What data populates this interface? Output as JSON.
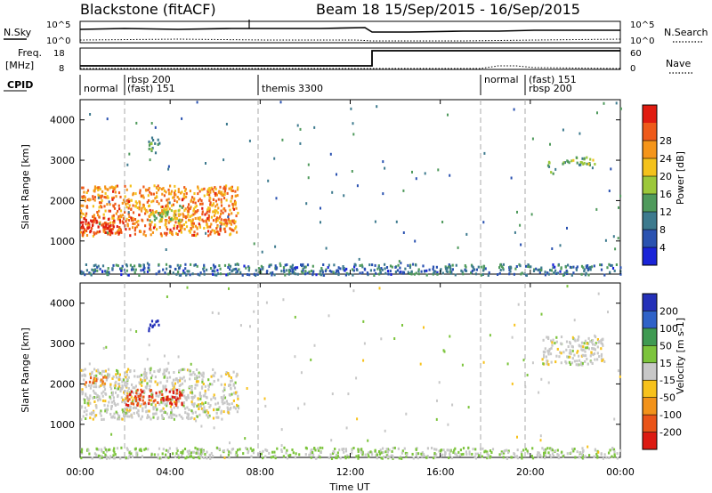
{
  "header": {
    "station": "Blackstone (fitACF)",
    "beam": "Beam 18",
    "date_range": "15/Sep/2015 - 16/Sep/2015"
  },
  "params": {
    "nsky_label": "N.Sky",
    "nsearch_label": "N.Search",
    "nsky_ticks": [
      "10^5",
      "10^0"
    ],
    "nsearch_ticks": [
      "10^5",
      "10^0"
    ],
    "freq_label": "Freq.",
    "freq_unit": "[MHz]",
    "freq_ticks": [
      "18",
      "8"
    ],
    "nave_label": "Nave",
    "nave_ticks": [
      "60",
      "0"
    ],
    "cpid_label": "CPID"
  },
  "cpid_modes": [
    {
      "time_h": 0.0,
      "text": "normal"
    },
    {
      "time_h": 2.0,
      "text": "rbsp 200"
    },
    {
      "time_h": 2.0,
      "text": "(fast) 151"
    },
    {
      "time_h": 8.0,
      "text": "themis 3300"
    },
    {
      "time_h": 18.0,
      "text": "normal"
    },
    {
      "time_h": 20.0,
      "text": "(fast) 151"
    },
    {
      "time_h": 20.0,
      "text": "rbsp 200"
    }
  ],
  "axes": {
    "x_label": "Time UT",
    "x_ticks": [
      "00:00",
      "04:00",
      "08:00",
      "12:00",
      "16:00",
      "20:00",
      "00:00"
    ],
    "y_label": "Slant Range [km]",
    "y_ticks": [
      "1000",
      "2000",
      "3000",
      "4000"
    ]
  },
  "power_bar": {
    "label": "Power [dB]",
    "ticks": [
      "4",
      "8",
      "12",
      "16",
      "20",
      "24",
      "28"
    ],
    "colors": [
      "#1a24d8",
      "#2a52b0",
      "#3d7a8e",
      "#4f9a5c",
      "#9cc83a",
      "#f4c21c",
      "#f5951a",
      "#ee5a1a",
      "#e01b10"
    ]
  },
  "velocity_bar": {
    "label": "Velocity [m s-1]",
    "ticks": [
      "200",
      "100",
      "50",
      "15",
      "-15",
      "-50",
      "-100",
      "-200"
    ],
    "colors": [
      "#2430b8",
      "#2f62c8",
      "#3f9a52",
      "#7cc43c",
      "#c8c8c8",
      "#f7c21c",
      "#f2921a",
      "#ea5418",
      "#dc1a12"
    ]
  },
  "chart_data": [
    {
      "type": "heatmap",
      "title": "Power",
      "xlabel": "Time UT",
      "ylabel": "Slant Range [km]",
      "xlim": [
        0,
        24
      ],
      "ylim": [
        180,
        4500
      ],
      "colorbar": {
        "label": "Power [dB]",
        "range": [
          0,
          32
        ]
      },
      "regions": [
        {
          "t": [
            0.0,
            7.0
          ],
          "range_km": [
            1150,
            2400
          ],
          "value": 24
        },
        {
          "t": [
            0.0,
            2.0
          ],
          "range_km": [
            1200,
            1600
          ],
          "value": 30
        },
        {
          "t": [
            3.0,
            4.5
          ],
          "range_km": [
            1500,
            1900
          ],
          "value": 16
        },
        {
          "t": [
            3.0,
            3.5
          ],
          "range_km": [
            3200,
            3600
          ],
          "value": 12
        },
        {
          "t": [
            20.7,
            21.0
          ],
          "range_km": [
            2700,
            3000
          ],
          "value": 14
        },
        {
          "t": [
            21.3,
            23.0
          ],
          "range_km": [
            2900,
            3100
          ],
          "value": 14
        },
        {
          "t": [
            0.0,
            24.0
          ],
          "range_km": [
            180,
            450
          ],
          "value": 8
        }
      ]
    },
    {
      "type": "heatmap",
      "title": "Velocity",
      "xlabel": "Time UT",
      "ylabel": "Slant Range [km]",
      "xlim": [
        0,
        24
      ],
      "ylim": [
        180,
        4500
      ],
      "colorbar": {
        "label": "Velocity [m s-1]",
        "range": [
          -200,
          200
        ]
      },
      "regions": [
        {
          "t": [
            0.0,
            7.0
          ],
          "range_km": [
            1150,
            2400
          ],
          "value": 0
        },
        {
          "t": [
            2.0,
            4.5
          ],
          "range_km": [
            1500,
            1900
          ],
          "value": -150
        },
        {
          "t": [
            0.0,
            1.2
          ],
          "range_km": [
            2000,
            2200
          ],
          "value": -120
        },
        {
          "t": [
            3.0,
            3.5
          ],
          "range_km": [
            3300,
            3600
          ],
          "value": 180
        },
        {
          "t": [
            20.5,
            23.2
          ],
          "range_km": [
            2500,
            3200
          ],
          "value": 0
        },
        {
          "t": [
            0.0,
            24.0
          ],
          "range_km": [
            180,
            450
          ],
          "value": 20
        }
      ]
    }
  ]
}
